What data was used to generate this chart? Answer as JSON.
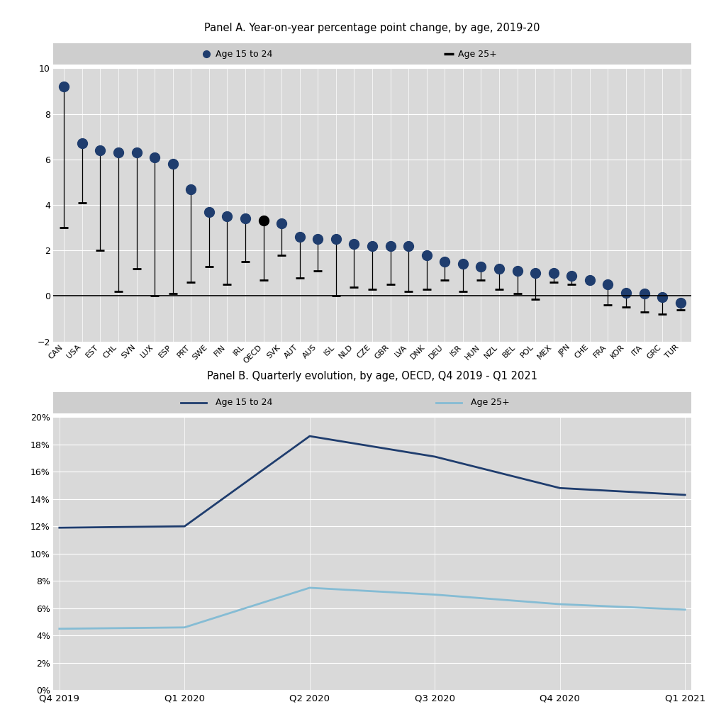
{
  "panel_a_title": "Panel A. Year-on-year percentage point change, by age, 2019-20",
  "panel_b_title": "Panel B. Quarterly evolution, by age, OECD, Q4 2019 - Q1 2021",
  "countries": [
    "CAN",
    "USA",
    "EST",
    "CHL",
    "SVN",
    "LUX",
    "ESP",
    "PRT",
    "SWE",
    "FIN",
    "IRL",
    "OECD",
    "SVK",
    "AUT",
    "AUS",
    "ISL",
    "NLD",
    "CZE",
    "GBR",
    "LVA",
    "DNK",
    "DEU",
    "ISR",
    "HUN",
    "NZL",
    "BEL",
    "POL",
    "MEX",
    "JPN",
    "CHE",
    "FRA",
    "KOR",
    "ITA",
    "GRC",
    "TUR"
  ],
  "young_vals": [
    9.2,
    6.7,
    6.4,
    6.3,
    6.3,
    6.1,
    5.8,
    4.7,
    3.7,
    3.5,
    3.4,
    3.3,
    3.2,
    2.6,
    2.5,
    2.5,
    2.3,
    2.2,
    2.2,
    2.2,
    1.8,
    1.5,
    1.4,
    1.3,
    1.2,
    1.1,
    1.0,
    1.0,
    0.9,
    0.7,
    0.5,
    0.15,
    0.1,
    -0.05,
    -0.3
  ],
  "older_vals": [
    3.0,
    4.1,
    2.0,
    0.2,
    1.2,
    0.0,
    0.1,
    0.6,
    1.3,
    0.5,
    1.5,
    0.7,
    1.8,
    0.8,
    1.1,
    0.0,
    0.4,
    0.3,
    0.5,
    0.2,
    0.3,
    0.7,
    0.2,
    0.7,
    0.3,
    0.1,
    -0.15,
    0.6,
    0.5,
    0.6,
    -0.4,
    -0.5,
    -0.7,
    -0.8,
    -0.6
  ],
  "oecd_index": 11,
  "dot_color_blue": "#1F3D6E",
  "dot_color_oecd": "#000000",
  "line_color_young": "#1F3D6E",
  "line_color_older": "#85BCD4",
  "panel_a_ylim": [
    -2,
    10
  ],
  "panel_a_yticks": [
    -2,
    0,
    2,
    4,
    6,
    8,
    10
  ],
  "panel_b_quarters": [
    "Q4 2019",
    "Q1 2020",
    "Q2 2020",
    "Q3 2020",
    "Q4 2020",
    "Q1 2021"
  ],
  "panel_b_young": [
    0.119,
    0.12,
    0.186,
    0.171,
    0.148,
    0.143
  ],
  "panel_b_older": [
    0.045,
    0.046,
    0.075,
    0.07,
    0.063,
    0.059
  ],
  "panel_b_ylim": [
    0.0,
    0.2
  ],
  "panel_b_yticks": [
    0.0,
    0.02,
    0.04,
    0.06,
    0.08,
    0.1,
    0.12,
    0.14,
    0.16,
    0.18,
    0.2
  ],
  "legend_bg": "#CECECE",
  "plot_bg": "#D9D9D9",
  "fig_bg": "#FFFFFF"
}
